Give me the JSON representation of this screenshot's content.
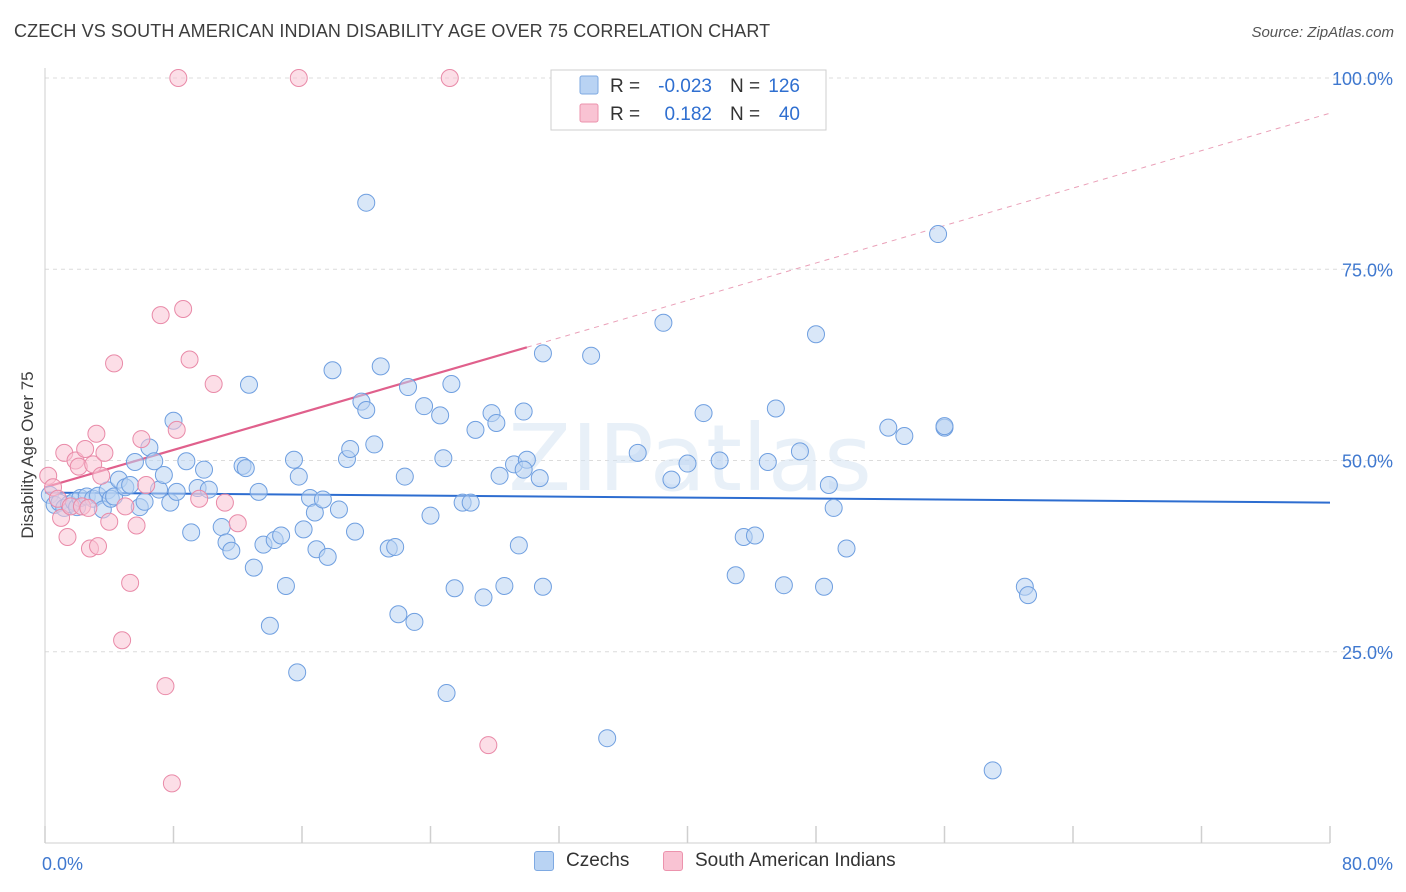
{
  "title": "CZECH VS SOUTH AMERICAN INDIAN DISABILITY AGE OVER 75 CORRELATION CHART",
  "source": "Source: ZipAtlas.com",
  "watermark": "ZIPatlas",
  "legend": [
    {
      "label": "Czechs",
      "fill": "#b9d3f3",
      "stroke": "#7ea9e2"
    },
    {
      "label": "South American Indians",
      "fill": "#f9c3d3",
      "stroke": "#ec93ad"
    }
  ],
  "stats": [
    {
      "r_label": "R =",
      "r_value": "-0.023",
      "n_label": "N =",
      "n_value": "126"
    },
    {
      "r_label": "R =",
      "r_value": "0.182",
      "n_label": "N =",
      "n_value": "40"
    }
  ],
  "chart_data": {
    "type": "scatter",
    "title": "CZECH VS SOUTH AMERICAN INDIAN DISABILITY AGE OVER 75 CORRELATION CHART",
    "xlabel": "",
    "ylabel": "Disability Age Over 75",
    "xlim": [
      0,
      80
    ],
    "ylim": [
      0,
      105
    ],
    "x_tick_labels": [
      {
        "value": 0,
        "label": "0.0%"
      },
      {
        "value": 80,
        "label": "80.0%"
      }
    ],
    "y_tick_labels": [
      {
        "value": 25,
        "label": "25.0%"
      },
      {
        "value": 50,
        "label": "50.0%"
      },
      {
        "value": 75,
        "label": "75.0%"
      },
      {
        "value": 100,
        "label": "100.0%"
      }
    ],
    "grid": true,
    "legend_position": "bottom-center",
    "series": [
      {
        "name": "Czechs",
        "color": "#5b93dc",
        "trend": {
          "x0": 0,
          "y0": 45.8,
          "x1": 80,
          "y1": 44.5
        },
        "points": [
          [
            0.3,
            45.5
          ],
          [
            0.6,
            44.2
          ],
          [
            0.9,
            44.5
          ],
          [
            1.2,
            43.8
          ],
          [
            1.5,
            44.3
          ],
          [
            1.8,
            44.6
          ],
          [
            2.0,
            43.9
          ],
          [
            2.2,
            45.1
          ],
          [
            2.6,
            45.3
          ],
          [
            3.0,
            45.0
          ],
          [
            3.3,
            45.4
          ],
          [
            3.6,
            43.6
          ],
          [
            3.9,
            46.1
          ],
          [
            4.1,
            45.0
          ],
          [
            4.3,
            45.3
          ],
          [
            4.6,
            47.5
          ],
          [
            5.0,
            46.5
          ],
          [
            5.3,
            46.8
          ],
          [
            5.6,
            49.8
          ],
          [
            5.9,
            43.9
          ],
          [
            6.2,
            44.6
          ],
          [
            6.5,
            51.7
          ],
          [
            6.8,
            49.9
          ],
          [
            7.1,
            46.2
          ],
          [
            7.4,
            48.1
          ],
          [
            7.8,
            44.5
          ],
          [
            8.0,
            55.2
          ],
          [
            8.2,
            45.9
          ],
          [
            8.8,
            49.9
          ],
          [
            9.1,
            40.6
          ],
          [
            9.5,
            46.4
          ],
          [
            9.9,
            48.8
          ],
          [
            10.2,
            46.2
          ],
          [
            11.0,
            41.3
          ],
          [
            11.3,
            39.3
          ],
          [
            11.6,
            38.2
          ],
          [
            12.3,
            49.3
          ],
          [
            12.5,
            49.0
          ],
          [
            13.0,
            36.0
          ],
          [
            13.3,
            45.9
          ],
          [
            13.6,
            39.0
          ],
          [
            14.0,
            28.4
          ],
          [
            14.3,
            39.6
          ],
          [
            14.7,
            40.2
          ],
          [
            15.0,
            33.6
          ],
          [
            15.5,
            50.1
          ],
          [
            15.8,
            47.9
          ],
          [
            16.1,
            41.0
          ],
          [
            16.5,
            45.1
          ],
          [
            16.8,
            43.2
          ],
          [
            16.9,
            38.4
          ],
          [
            17.3,
            44.9
          ],
          [
            17.6,
            37.4
          ],
          [
            17.9,
            61.8
          ],
          [
            18.3,
            43.6
          ],
          [
            18.8,
            50.2
          ],
          [
            19.0,
            51.5
          ],
          [
            19.3,
            40.7
          ],
          [
            19.7,
            57.7
          ],
          [
            20.0,
            56.6
          ],
          [
            20.5,
            52.1
          ],
          [
            21.4,
            38.5
          ],
          [
            21.8,
            38.7
          ],
          [
            22.0,
            29.9
          ],
          [
            22.4,
            47.9
          ],
          [
            22.6,
            59.6
          ],
          [
            23.0,
            28.9
          ],
          [
            23.6,
            57.1
          ],
          [
            24.0,
            42.8
          ],
          [
            24.6,
            55.9
          ],
          [
            24.8,
            50.3
          ],
          [
            25.5,
            33.3
          ],
          [
            26.0,
            44.5
          ],
          [
            26.5,
            44.5
          ],
          [
            26.8,
            54.0
          ],
          [
            27.3,
            32.1
          ],
          [
            27.8,
            56.2
          ],
          [
            28.3,
            48.0
          ],
          [
            28.6,
            33.6
          ],
          [
            29.2,
            49.5
          ],
          [
            29.5,
            38.9
          ],
          [
            30.0,
            50.1
          ],
          [
            29.8,
            48.8
          ],
          [
            31.0,
            33.5
          ],
          [
            34.0,
            63.7
          ],
          [
            36.9,
            51.0
          ],
          [
            38.5,
            68.0
          ],
          [
            39.0,
            47.5
          ],
          [
            40.0,
            49.6
          ],
          [
            41.0,
            56.2
          ],
          [
            42.0,
            50.0
          ],
          [
            43.0,
            35.0
          ],
          [
            43.5,
            40.0
          ],
          [
            44.2,
            40.2
          ],
          [
            45.0,
            49.8
          ],
          [
            45.5,
            56.8
          ],
          [
            46.0,
            33.7
          ],
          [
            47.0,
            51.2
          ],
          [
            48.0,
            66.5
          ],
          [
            48.5,
            33.5
          ],
          [
            48.8,
            46.8
          ],
          [
            49.1,
            43.8
          ],
          [
            49.9,
            38.5
          ],
          [
            52.5,
            54.3
          ],
          [
            53.5,
            53.2
          ],
          [
            55.6,
            79.6
          ],
          [
            56.0,
            54.3
          ],
          [
            56.0,
            54.5
          ],
          [
            59.0,
            9.5
          ],
          [
            61.0,
            33.5
          ],
          [
            61.2,
            32.4
          ],
          [
            15.7,
            22.3
          ],
          [
            25.0,
            19.6
          ],
          [
            35.0,
            13.7
          ],
          [
            20.0,
            83.7
          ],
          [
            20.9,
            62.3
          ],
          [
            31.0,
            64.0
          ],
          [
            28.1,
            54.9
          ],
          [
            29.8,
            56.4
          ],
          [
            25.3,
            60.0
          ],
          [
            12.7,
            59.9
          ],
          [
            30.8,
            47.7
          ]
        ]
      },
      {
        "name": "South American Indians",
        "color": "#e0739a",
        "trend": {
          "x0": 0,
          "y0": 46.5,
          "x1": 30,
          "y1": 64.8,
          "dash_to_x": 80,
          "dash_to_y": 95.4
        },
        "points": [
          [
            0.2,
            48.0
          ],
          [
            0.5,
            46.5
          ],
          [
            0.8,
            45.0
          ],
          [
            1.0,
            42.5
          ],
          [
            1.2,
            51.0
          ],
          [
            1.4,
            40.0
          ],
          [
            1.6,
            44.0
          ],
          [
            1.9,
            50.0
          ],
          [
            2.1,
            49.2
          ],
          [
            2.3,
            44.0
          ],
          [
            2.5,
            51.5
          ],
          [
            2.8,
            38.5
          ],
          [
            3.0,
            49.5
          ],
          [
            3.2,
            53.5
          ],
          [
            3.5,
            48.0
          ],
          [
            3.7,
            51.0
          ],
          [
            4.0,
            42.0
          ],
          [
            4.3,
            62.7
          ],
          [
            4.8,
            26.5
          ],
          [
            5.0,
            44.0
          ],
          [
            5.3,
            34.0
          ],
          [
            5.7,
            41.5
          ],
          [
            6.0,
            52.8
          ],
          [
            6.3,
            46.8
          ],
          [
            7.2,
            69.0
          ],
          [
            7.5,
            20.5
          ],
          [
            7.9,
            7.8
          ],
          [
            8.2,
            54.0
          ],
          [
            8.6,
            69.8
          ],
          [
            9.0,
            63.2
          ],
          [
            9.6,
            45.0
          ],
          [
            10.5,
            60.0
          ],
          [
            11.2,
            44.5
          ],
          [
            12.0,
            41.8
          ],
          [
            8.3,
            100.0
          ],
          [
            15.8,
            100.0
          ],
          [
            25.2,
            100.0
          ],
          [
            27.6,
            12.8
          ],
          [
            2.7,
            43.8
          ],
          [
            3.3,
            38.8
          ]
        ]
      }
    ]
  }
}
